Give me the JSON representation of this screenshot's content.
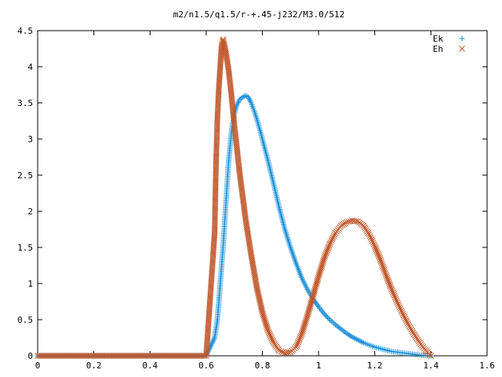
{
  "chart_data": {
    "type": "scatter",
    "title": "m2/n1.5/q1.5/r-+.45-j232/M3.0/512",
    "xlabel": "",
    "ylabel": "",
    "xlim": [
      0,
      1.6
    ],
    "ylim": [
      0,
      4.5
    ],
    "xticks": [
      "0",
      "0.2",
      "0.4",
      "0.6",
      "0.8",
      "1",
      "1.2",
      "1.4",
      "1.6"
    ],
    "yticks": [
      "0",
      "0.5",
      "1",
      "1.5",
      "2",
      "2.5",
      "3",
      "3.5",
      "4",
      "4.5"
    ],
    "legend_position": "top-right",
    "series": [
      {
        "name": "Ek",
        "marker": "plus",
        "color": "#1a8fd8",
        "x": [
          0.0,
          0.05,
          0.1,
          0.15,
          0.2,
          0.25,
          0.3,
          0.35,
          0.4,
          0.45,
          0.5,
          0.55,
          0.6,
          0.63,
          0.64,
          0.65,
          0.66,
          0.67,
          0.68,
          0.69,
          0.7,
          0.71,
          0.72,
          0.73,
          0.74,
          0.75,
          0.76,
          0.77,
          0.78,
          0.8,
          0.82,
          0.84,
          0.86,
          0.88,
          0.9,
          0.92,
          0.94,
          0.96,
          0.98,
          1.0,
          1.02,
          1.04,
          1.06,
          1.08,
          1.1,
          1.12,
          1.14,
          1.16,
          1.18,
          1.2,
          1.22,
          1.24,
          1.26,
          1.28,
          1.3,
          1.32,
          1.34,
          1.36,
          1.38,
          1.4
        ],
        "y": [
          0.0,
          0.0,
          0.0,
          0.0,
          0.0,
          0.0,
          0.0,
          0.0,
          0.0,
          0.0,
          0.0,
          0.0,
          0.0,
          0.25,
          0.5,
          1.0,
          1.5,
          2.1,
          2.7,
          3.1,
          3.35,
          3.48,
          3.55,
          3.58,
          3.6,
          3.58,
          3.5,
          3.4,
          3.28,
          3.0,
          2.7,
          2.38,
          2.05,
          1.75,
          1.5,
          1.28,
          1.08,
          0.92,
          0.79,
          0.68,
          0.58,
          0.5,
          0.43,
          0.37,
          0.31,
          0.26,
          0.22,
          0.18,
          0.15,
          0.12,
          0.1,
          0.08,
          0.06,
          0.05,
          0.04,
          0.03,
          0.02,
          0.01,
          0.005,
          0.0
        ]
      },
      {
        "name": "Eh",
        "marker": "cross",
        "color": "#c0572a",
        "x": [
          0.0,
          0.05,
          0.1,
          0.15,
          0.2,
          0.25,
          0.3,
          0.35,
          0.4,
          0.45,
          0.5,
          0.55,
          0.6,
          0.63,
          0.635,
          0.64,
          0.645,
          0.65,
          0.655,
          0.66,
          0.67,
          0.68,
          0.69,
          0.7,
          0.72,
          0.74,
          0.76,
          0.78,
          0.8,
          0.82,
          0.84,
          0.86,
          0.88,
          0.9,
          0.92,
          0.94,
          0.96,
          0.98,
          1.0,
          1.02,
          1.04,
          1.06,
          1.08,
          1.1,
          1.12,
          1.14,
          1.16,
          1.18,
          1.2,
          1.22,
          1.24,
          1.26,
          1.28,
          1.3,
          1.32,
          1.34,
          1.36,
          1.38,
          1.4
        ],
        "y": [
          0.0,
          0.0,
          0.0,
          0.0,
          0.0,
          0.0,
          0.0,
          0.0,
          0.0,
          0.0,
          0.0,
          0.0,
          0.0,
          1.7,
          2.65,
          3.3,
          3.7,
          4.0,
          4.3,
          4.38,
          4.2,
          3.95,
          3.6,
          3.2,
          2.5,
          1.9,
          1.4,
          0.95,
          0.6,
          0.35,
          0.18,
          0.07,
          0.04,
          0.05,
          0.12,
          0.3,
          0.55,
          0.82,
          1.1,
          1.35,
          1.55,
          1.7,
          1.8,
          1.85,
          1.87,
          1.86,
          1.8,
          1.68,
          1.52,
          1.33,
          1.12,
          0.92,
          0.74,
          0.58,
          0.43,
          0.3,
          0.18,
          0.08,
          0.0
        ]
      }
    ]
  }
}
